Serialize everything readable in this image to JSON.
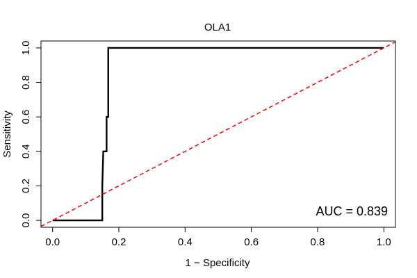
{
  "chart_data": {
    "type": "line",
    "title": "OLA1",
    "xlabel": "1 − Specificity",
    "ylabel": "Sensitivity",
    "xlim": [
      -0.035,
      1.035
    ],
    "ylim": [
      -0.04,
      1.04
    ],
    "x_ticks": [
      0.0,
      0.2,
      0.4,
      0.6,
      0.8,
      1.0
    ],
    "x_tick_labels": [
      "0.0",
      "0.2",
      "0.4",
      "0.6",
      "0.8",
      "1.0"
    ],
    "y_ticks": [
      0.0,
      0.2,
      0.4,
      0.6,
      0.8,
      1.0
    ],
    "y_tick_labels": [
      "0.0",
      "0.2",
      "0.4",
      "0.6",
      "0.8",
      "1.0"
    ],
    "grid": false,
    "annotation": "AUC = 0.839",
    "series": [
      {
        "color": "#000000",
        "style": "solid",
        "x": [
          0.0,
          0.15,
          0.15,
          0.153,
          0.158,
          0.163,
          0.163,
          0.168,
          0.168,
          1.0
        ],
        "y": [
          0.0,
          0.0,
          0.2,
          0.4,
          0.4,
          0.4,
          0.6,
          0.6,
          1.0,
          1.0
        ]
      },
      {
        "color": "#ff0000",
        "style": "dashed",
        "x": [
          -0.035,
          1.035
        ],
        "y": [
          -0.035,
          1.035
        ]
      }
    ]
  }
}
